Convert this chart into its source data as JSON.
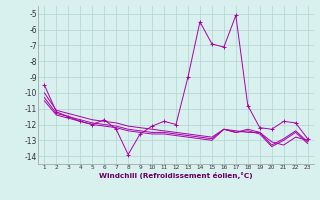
{
  "xlabel": "Windchill (Refroidissement éolien,°C)",
  "background_color": "#d8f0ee",
  "grid_color": "#b0d4d0",
  "line_color": "#aa00aa",
  "x": [
    1,
    2,
    3,
    4,
    5,
    6,
    7,
    8,
    9,
    10,
    11,
    12,
    13,
    14,
    15,
    16,
    17,
    18,
    19,
    20,
    21,
    22,
    23
  ],
  "y_main": [
    -9.5,
    -11.2,
    -11.5,
    -11.8,
    -12.0,
    -11.7,
    -12.3,
    -13.9,
    -12.6,
    -12.1,
    -11.8,
    -12.0,
    -9.0,
    -5.5,
    -6.9,
    -7.1,
    -5.1,
    -10.8,
    -12.2,
    -12.3,
    -11.8,
    -11.9,
    -12.9
  ],
  "y_trend1": [
    -10.0,
    -11.1,
    -11.3,
    -11.5,
    -11.7,
    -11.8,
    -11.9,
    -12.1,
    -12.2,
    -12.3,
    -12.4,
    -12.5,
    -12.6,
    -12.7,
    -12.8,
    -12.3,
    -12.4,
    -12.5,
    -12.5,
    -13.1,
    -13.3,
    -12.8,
    -13.0
  ],
  "y_trend2": [
    -10.3,
    -11.3,
    -11.5,
    -11.7,
    -11.9,
    -12.0,
    -12.1,
    -12.3,
    -12.4,
    -12.5,
    -12.5,
    -12.6,
    -12.7,
    -12.8,
    -12.9,
    -12.3,
    -12.5,
    -12.3,
    -12.5,
    -13.3,
    -12.9,
    -12.4,
    -13.1
  ],
  "y_trend3": [
    -10.5,
    -11.4,
    -11.6,
    -11.8,
    -12.0,
    -12.1,
    -12.2,
    -12.4,
    -12.5,
    -12.6,
    -12.6,
    -12.7,
    -12.8,
    -12.9,
    -13.0,
    -12.3,
    -12.5,
    -12.4,
    -12.6,
    -13.4,
    -13.0,
    -12.5,
    -13.2
  ],
  "ylim": [
    -14.5,
    -4.5
  ],
  "yticks": [
    -14,
    -13,
    -12,
    -11,
    -10,
    -9,
    -8,
    -7,
    -6,
    -5
  ],
  "xlim": [
    0.5,
    23.5
  ],
  "xticks": [
    1,
    2,
    3,
    4,
    5,
    6,
    7,
    8,
    9,
    10,
    11,
    12,
    13,
    14,
    15,
    16,
    17,
    18,
    19,
    20,
    21,
    22,
    23
  ]
}
